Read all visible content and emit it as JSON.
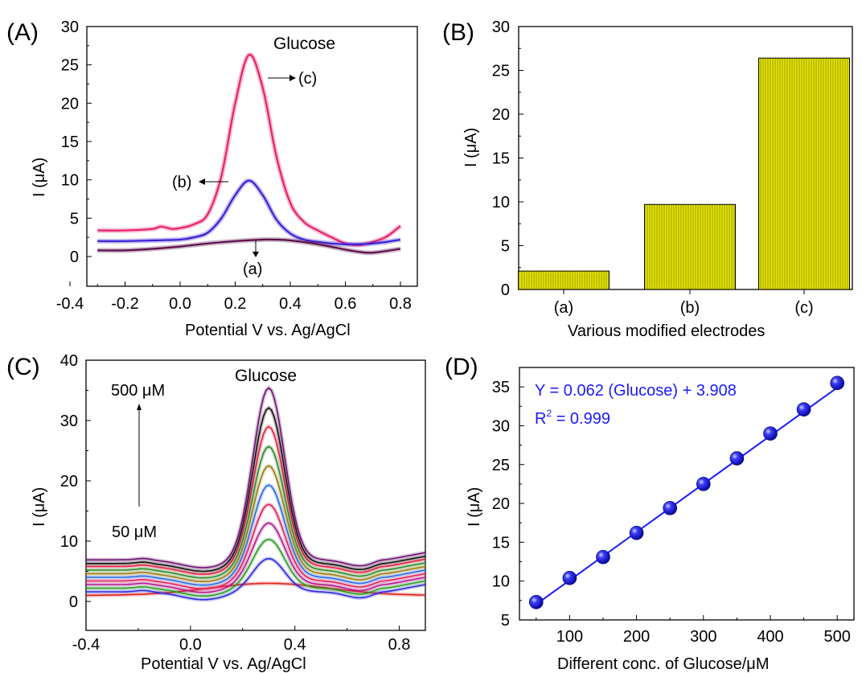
{
  "chart_data": [
    {
      "panel": "(A)",
      "type": "line",
      "xlabel": "Potential V vs. Ag/AgCl",
      "ylabel": "I (μA)",
      "xlim": [
        -0.4,
        0.8
      ],
      "ylim": [
        -4,
        30
      ],
      "xticks": [
        "-0.4",
        "-0.2",
        "0.0",
        "0.2",
        "0.4",
        "0.6",
        "0.8"
      ],
      "yticks": [
        "0",
        "5",
        "10",
        "15",
        "20",
        "25",
        "30"
      ],
      "annotation": "Glucose",
      "series": [
        {
          "name": "(c)",
          "color": "#e8226e",
          "x": [
            -0.3,
            -0.2,
            -0.1,
            -0.07,
            -0.03,
            0.0,
            0.05,
            0.1,
            0.15,
            0.2,
            0.25,
            0.3,
            0.35,
            0.4,
            0.45,
            0.5,
            0.55,
            0.6,
            0.65,
            0.7,
            0.75,
            0.8
          ],
          "y": [
            3.4,
            3.4,
            3.6,
            3.9,
            3.6,
            3.7,
            4.2,
            5.5,
            10.5,
            20.0,
            26.3,
            22.0,
            13.0,
            7.0,
            4.5,
            3.4,
            2.5,
            1.7,
            1.5,
            1.9,
            2.6,
            4.0
          ]
        },
        {
          "name": "(b)",
          "color": "#3b22d6",
          "x": [
            -0.3,
            -0.2,
            -0.1,
            0.0,
            0.05,
            0.1,
            0.15,
            0.2,
            0.25,
            0.3,
            0.35,
            0.4,
            0.45,
            0.5,
            0.55,
            0.6,
            0.65,
            0.7,
            0.75,
            0.8
          ],
          "y": [
            2.0,
            2.0,
            2.1,
            2.2,
            2.5,
            3.1,
            5.0,
            8.0,
            9.9,
            8.0,
            4.8,
            3.0,
            2.2,
            1.9,
            1.7,
            1.6,
            1.6,
            1.7,
            1.9,
            2.2
          ]
        },
        {
          "name": "(a)",
          "color": "#5a1049",
          "x": [
            -0.3,
            -0.2,
            -0.1,
            0.0,
            0.1,
            0.2,
            0.3,
            0.35,
            0.4,
            0.5,
            0.6,
            0.65,
            0.7,
            0.8
          ],
          "y": [
            0.8,
            0.8,
            1.0,
            1.3,
            1.7,
            2.0,
            2.2,
            2.2,
            2.1,
            1.6,
            0.9,
            0.6,
            0.5,
            1.0
          ]
        }
      ],
      "labels": [
        "(c)",
        "(b)",
        "(a)"
      ]
    },
    {
      "panel": "(B)",
      "type": "bar",
      "xlabel": "Various modified electrodes",
      "ylabel": "I (μA)",
      "categories": [
        "(a)",
        "(b)",
        "(c)"
      ],
      "values": [
        2.1,
        9.7,
        26.4
      ],
      "ylim": [
        0,
        30
      ],
      "yticks": [
        "0",
        "5",
        "10",
        "15",
        "20",
        "25",
        "30"
      ],
      "bar_color": "#e6e600"
    },
    {
      "panel": "(C)",
      "type": "line",
      "xlabel": "Potential V vs. Ag/AgCl",
      "ylabel": "I (μA)",
      "xlim": [
        -0.4,
        0.9
      ],
      "ylim": [
        -2,
        40
      ],
      "xticks": [
        "-0.4",
        "0.0",
        "0.4",
        "0.8"
      ],
      "yticks": [
        "0",
        "10",
        "20",
        "30",
        "40"
      ],
      "annotation": "Glucose",
      "range_top": "500 μM",
      "range_bottom": "50 μM",
      "series": [
        {
          "color": "#e0201c",
          "base": 1.0,
          "peak": 3.0
        },
        {
          "color": "#2a2ae0",
          "base": 1.6,
          "peak": 7.1
        },
        {
          "color": "#2a9a2a",
          "base": 2.2,
          "peak": 10.3
        },
        {
          "color": "#b01a8f",
          "base": 2.8,
          "peak": 13.0
        },
        {
          "color": "#e0205a",
          "base": 3.4,
          "peak": 16.1
        },
        {
          "color": "#2a6ae0",
          "base": 4.0,
          "peak": 19.3
        },
        {
          "color": "#9a7a10",
          "base": 4.6,
          "peak": 22.5
        },
        {
          "color": "#2a8a2a",
          "base": 5.2,
          "peak": 25.7
        },
        {
          "color": "#e02040",
          "base": 5.8,
          "peak": 29.0
        },
        {
          "color": "#111111",
          "base": 6.3,
          "peak": 32.1
        },
        {
          "color": "#6a1070",
          "base": 6.9,
          "peak": 35.4
        }
      ]
    },
    {
      "panel": "(D)",
      "type": "scatter",
      "xlabel": "Different conc. of Glucose/μM",
      "ylabel": "I (μA)",
      "xlim": [
        25,
        525
      ],
      "ylim": [
        5,
        37.5
      ],
      "xticks": [
        "100",
        "200",
        "300",
        "400",
        "500"
      ],
      "yticks": [
        "5",
        "10",
        "15",
        "20",
        "25",
        "30",
        "35"
      ],
      "x": [
        50,
        100,
        150,
        200,
        250,
        300,
        350,
        400,
        450,
        500
      ],
      "y": [
        7.3,
        10.4,
        13.1,
        16.2,
        19.4,
        22.5,
        25.8,
        29.0,
        32.1,
        35.5
      ],
      "fit": {
        "slope": 0.062,
        "intercept": 3.908
      },
      "equation_prefix": "Y = 0.062 (",
      "equation_var": "Glucose",
      "equation_suffix": ") + 3.908",
      "r2_prefix": "R",
      "r2_sup": "2",
      "r2_suffix": " = 0.999",
      "color": "#1a1aff"
    }
  ]
}
